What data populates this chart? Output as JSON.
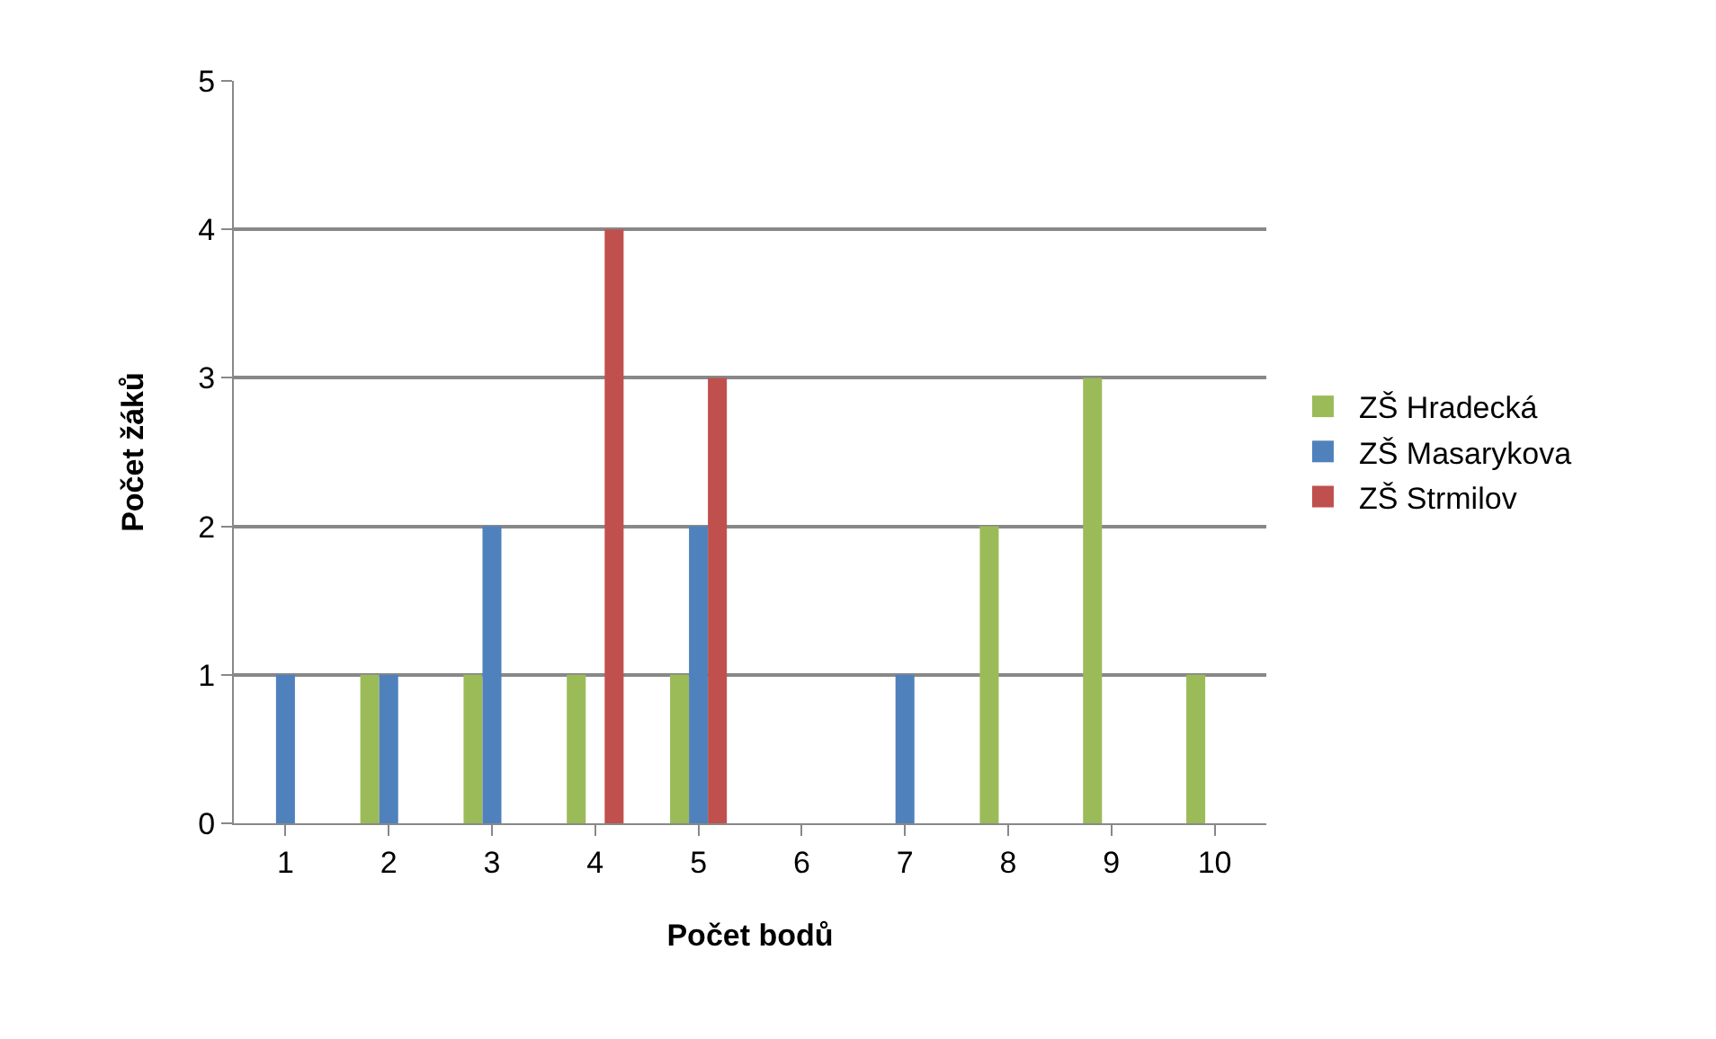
{
  "chart_data": {
    "type": "bar",
    "xlabel": "Počet bodů",
    "ylabel": "Počet žáků",
    "categories": [
      "1",
      "2",
      "3",
      "4",
      "5",
      "6",
      "7",
      "8",
      "9",
      "10"
    ],
    "series": [
      {
        "name": "ZŠ Hradecká",
        "color": "#9bbb59",
        "values": [
          0,
          1,
          1,
          1,
          1,
          0,
          0,
          2,
          3,
          1
        ]
      },
      {
        "name": "ZŠ Masarykova",
        "color": "#4f81bd",
        "values": [
          1,
          1,
          2,
          0,
          2,
          0,
          1,
          0,
          0,
          0
        ]
      },
      {
        "name": "ZŠ Strmilov",
        "color": "#c0504d",
        "values": [
          0,
          0,
          0,
          4,
          3,
          0,
          0,
          0,
          0,
          0
        ]
      }
    ],
    "ylim": [
      0,
      5
    ],
    "yticks": [
      0,
      1,
      2,
      3,
      4,
      5
    ],
    "grid": "y",
    "legend": "right"
  }
}
